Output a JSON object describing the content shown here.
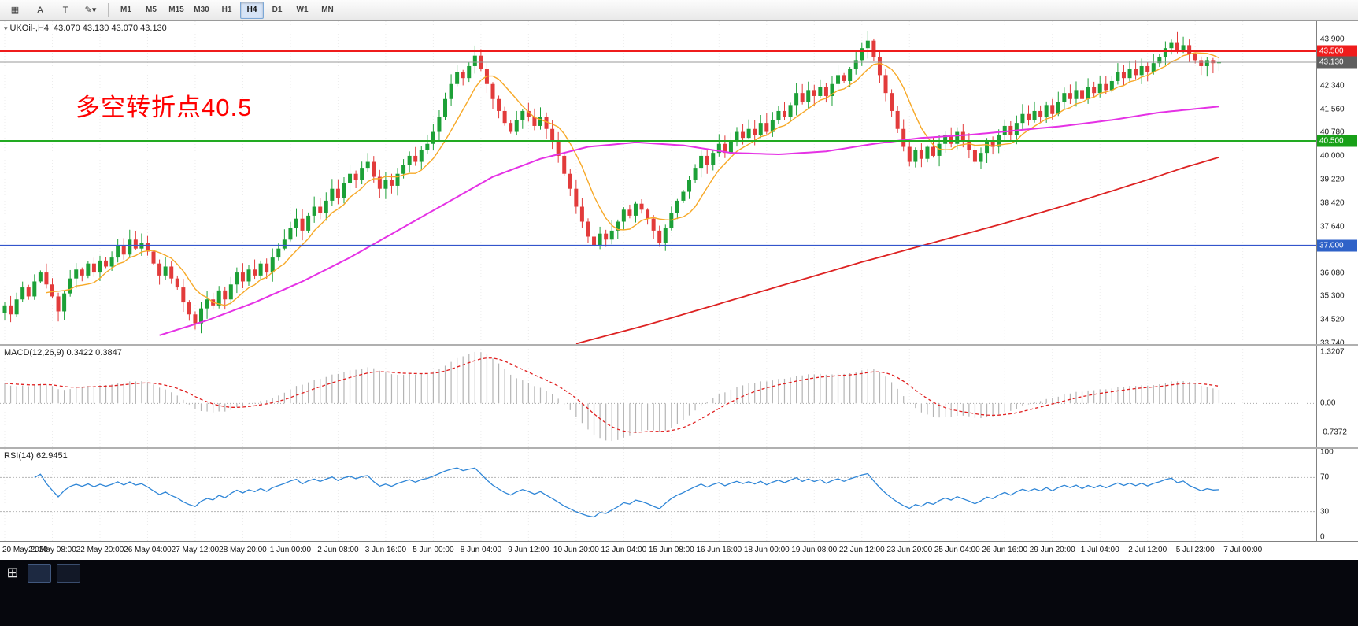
{
  "toolbar": {
    "icon_buttons": [
      {
        "name": "market-watch-icon-button",
        "glyph": "▦"
      },
      {
        "name": "text-label-a-button",
        "glyph": "A"
      },
      {
        "name": "text-tool-t-button",
        "glyph": "T"
      },
      {
        "name": "draw-tool-dropdown-button",
        "glyph": "✎▾"
      }
    ],
    "timeframes": [
      "M1",
      "M5",
      "M15",
      "M30",
      "H1",
      "H4",
      "D1",
      "W1",
      "MN"
    ],
    "active_timeframe": "H4"
  },
  "chart": {
    "symbol_title": "UKOil-,H4",
    "ohlc": "43.070 43.130 43.070 43.130",
    "annotation": "多空转折点40.5",
    "price_axis_labels": [
      "43.900",
      "42.340",
      "41.560",
      "40.780",
      "40.000",
      "39.220",
      "38.420",
      "37.640",
      "36.860",
      "36.080",
      "35.300",
      "34.520",
      "33.740"
    ],
    "price_badges": [
      {
        "text": "43.500",
        "price": 43.5,
        "color": "#ef1c1c"
      },
      {
        "text": "43.130",
        "price": 43.13,
        "color": "#5f5f5f"
      },
      {
        "text": "40.500",
        "price": 40.5,
        "color": "#18a018"
      },
      {
        "text": "37.000",
        "price": 37.0,
        "color": "#2f62c8"
      }
    ]
  },
  "macd": {
    "label": "MACD(12,26,9) 0.3422 0.3847",
    "values": [
      0.3422,
      0.3847
    ],
    "axis": [
      {
        "text": "1.3207",
        "v": 1.3207
      },
      {
        "text": "0.00",
        "v": 0
      },
      {
        "text": "-0.7372",
        "v": -0.7372
      }
    ]
  },
  "rsi": {
    "label": "RSI(14) 62.9451",
    "value": 62.9451,
    "axis": [
      {
        "text": "100",
        "v": 100
      },
      {
        "text": "70",
        "v": 70
      },
      {
        "text": "30",
        "v": 30
      },
      {
        "text": "0",
        "v": 0
      }
    ],
    "levels": [
      70,
      30
    ]
  },
  "time_axis": {
    "labels": [
      "20 May 2020",
      "21 May 08:00",
      "22 May 20:00",
      "26 May 04:00",
      "27 May 12:00",
      "28 May 20:00",
      "1 Jun 00:00",
      "2 Jun 08:00",
      "3 Jun 16:00",
      "5 Jun 00:00",
      "8 Jun 04:00",
      "9 Jun 12:00",
      "10 Jun 20:00",
      "12 Jun 04:00",
      "15 Jun 08:00",
      "16 Jun 16:00",
      "18 Jun 00:00",
      "19 Jun 08:00",
      "22 Jun 12:00",
      "23 Jun 20:00",
      "25 Jun 04:00",
      "26 Jun 16:00",
      "29 Jun 20:00",
      "1 Jul 04:00",
      "2 Jul 12:00",
      "5 Jul 23:00",
      "7 Jul 00:00"
    ]
  },
  "taskbar": {
    "start_glyph": "⊞",
    "icons": [
      {
        "name": "start-icon"
      },
      {
        "name": "taskbar-app-icon-1"
      },
      {
        "name": "taskbar-app-icon-2"
      }
    ]
  },
  "colors": {
    "candle_up": "#1ca037",
    "candle_down": "#e23b3b",
    "ma_fast": "#f7a928",
    "ma_mid": "#e532e5",
    "ma_slow": "#dd2222",
    "hline_red": "#ef1c1c",
    "hline_green": "#22aa22",
    "hline_blue": "#3355cc",
    "current_price_line": "#9a9a9a",
    "macd_hist": "#b4b4b4",
    "macd_signal": "#e02020",
    "rsi_line": "#2f86d7",
    "grid": "#ececec",
    "annotation": "#ff0000"
  },
  "chart_data": {
    "type": "candlestick",
    "symbol": "UKOil-",
    "timeframe": "H4",
    "current_price": 43.13,
    "last_ohlc": {
      "open": 43.07,
      "high": 43.13,
      "low": 43.07,
      "close": 43.13
    },
    "price_max": 44.5,
    "price_min": 33.68,
    "closes": [
      35.0,
      34.7,
      35.2,
      35.6,
      35.3,
      35.8,
      36.1,
      35.7,
      35.3,
      34.8,
      35.4,
      35.9,
      36.2,
      36.0,
      36.4,
      36.1,
      36.5,
      36.3,
      36.6,
      37.0,
      36.7,
      37.2,
      36.9,
      37.1,
      36.8,
      36.4,
      36.0,
      36.3,
      35.9,
      35.6,
      35.1,
      34.7,
      34.4,
      34.9,
      35.2,
      35.0,
      35.5,
      35.2,
      35.7,
      36.1,
      35.8,
      36.2,
      36.0,
      36.4,
      36.1,
      36.6,
      36.9,
      37.2,
      37.6,
      37.9,
      37.5,
      38.0,
      38.3,
      38.1,
      38.5,
      38.9,
      38.6,
      39.1,
      39.4,
      39.2,
      39.6,
      39.8,
      39.3,
      38.9,
      39.2,
      39.0,
      39.4,
      39.7,
      40.0,
      39.8,
      40.2,
      40.4,
      40.8,
      41.3,
      41.9,
      42.4,
      42.8,
      42.6,
      43.0,
      43.35,
      42.9,
      42.4,
      41.9,
      41.5,
      41.1,
      40.8,
      41.2,
      41.5,
      41.3,
      41.0,
      41.3,
      40.9,
      40.5,
      40.0,
      39.4,
      38.9,
      38.3,
      37.8,
      37.3,
      37.0,
      37.4,
      37.2,
      37.5,
      37.8,
      38.2,
      38.0,
      38.4,
      38.2,
      37.9,
      37.5,
      37.1,
      37.6,
      38.1,
      38.5,
      38.8,
      39.2,
      39.6,
      40.0,
      39.7,
      40.1,
      40.4,
      40.1,
      40.5,
      40.8,
      40.6,
      40.9,
      40.7,
      41.1,
      40.8,
      41.2,
      41.5,
      41.3,
      41.7,
      42.1,
      41.8,
      42.2,
      42.0,
      42.3,
      42.0,
      42.4,
      42.7,
      42.5,
      42.9,
      43.2,
      43.6,
      43.85,
      43.3,
      42.7,
      42.1,
      41.5,
      40.9,
      40.3,
      39.8,
      40.2,
      39.9,
      40.3,
      40.0,
      40.4,
      40.7,
      40.4,
      40.8,
      40.5,
      40.2,
      39.8,
      40.1,
      40.5,
      40.3,
      40.7,
      41.0,
      40.7,
      41.1,
      41.4,
      41.2,
      41.5,
      41.3,
      41.7,
      41.4,
      41.8,
      42.1,
      41.9,
      42.2,
      41.9,
      42.3,
      42.1,
      42.4,
      42.2,
      42.5,
      42.8,
      42.6,
      42.9,
      42.7,
      43.0,
      42.8,
      43.1,
      43.3,
      43.6,
      43.8,
      43.5,
      43.7,
      43.4,
      43.2,
      43.0,
      43.2,
      43.1,
      43.13
    ],
    "hlines": [
      {
        "name": "resistance-line",
        "price": 43.5,
        "color": "#ef1c1c",
        "width": 2
      },
      {
        "name": "pivot-line",
        "price": 40.5,
        "color": "#22aa22",
        "width": 2
      },
      {
        "name": "support-line",
        "price": 37.0,
        "color": "#3355cc",
        "width": 2
      }
    ],
    "ma_fast_period": 8,
    "ma_mid_anchors": [
      [
        26,
        34.0
      ],
      [
        34,
        34.5
      ],
      [
        42,
        35.1
      ],
      [
        50,
        35.8
      ],
      [
        58,
        36.6
      ],
      [
        66,
        37.5
      ],
      [
        74,
        38.4
      ],
      [
        82,
        39.3
      ],
      [
        90,
        39.9
      ],
      [
        98,
        40.3
      ],
      [
        106,
        40.45
      ],
      [
        114,
        40.35
      ],
      [
        122,
        40.1
      ],
      [
        130,
        40.05
      ],
      [
        138,
        40.15
      ],
      [
        146,
        40.4
      ],
      [
        154,
        40.6
      ],
      [
        162,
        40.7
      ],
      [
        170,
        40.85
      ],
      [
        178,
        41.0
      ],
      [
        186,
        41.2
      ],
      [
        194,
        41.45
      ],
      [
        204,
        41.65
      ]
    ],
    "ma_slow_anchors": [
      [
        96,
        33.72
      ],
      [
        108,
        34.35
      ],
      [
        120,
        35.05
      ],
      [
        132,
        35.75
      ],
      [
        144,
        36.45
      ],
      [
        156,
        37.1
      ],
      [
        168,
        37.75
      ],
      [
        180,
        38.45
      ],
      [
        192,
        39.2
      ],
      [
        198,
        39.6
      ],
      [
        204,
        39.95
      ]
    ]
  }
}
